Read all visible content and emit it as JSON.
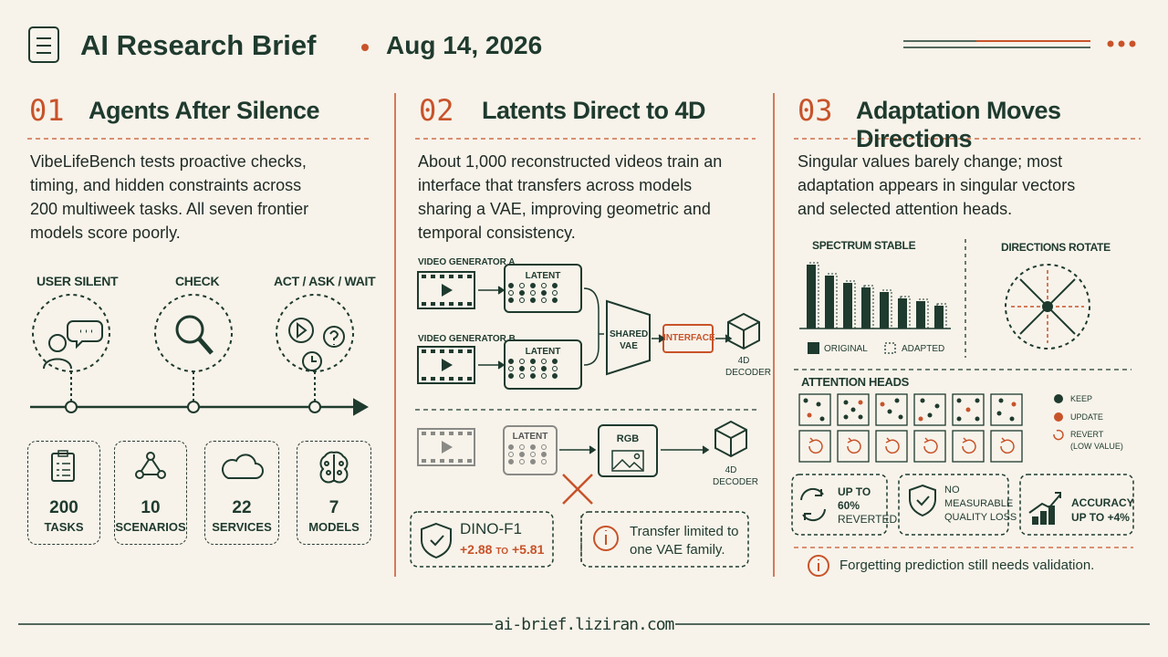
{
  "header": {
    "title": "AI Research Brief",
    "date": "Aug 14, 2026"
  },
  "sections": [
    {
      "number": "01",
      "title": "Agents After Silence",
      "body": "VibeLifeBench tests proactive checks, timing, and hidden constraints across 200 multiweek tasks. All seven frontier models score poorly.",
      "timeline": [
        "USER SILENT",
        "CHECK",
        "ACT / ASK / WAIT"
      ],
      "stats": [
        {
          "value": "200",
          "label": "TASKS"
        },
        {
          "value": "10",
          "label": "SCENARIOS"
        },
        {
          "value": "22",
          "label": "SERVICES"
        },
        {
          "value": "7",
          "label": "MODELS"
        }
      ]
    },
    {
      "number": "02",
      "title": "Latents Direct to 4D",
      "body": "About 1,000 reconstructed videos train an interface that transfers across models sharing a VAE, improving geometric and temporal consistency.",
      "diagram": {
        "generator_a": "VIDEO GENERATOR A",
        "generator_b": "VIDEO GENERATOR B",
        "latent": "LATENT",
        "shared_vae": "SHARED VAE",
        "interface": "INTERFACE",
        "decoder": "4D DECODER",
        "rgb": "RGB"
      },
      "metric": {
        "name": "DINO-F1",
        "low": "+2.88",
        "sep": "to",
        "high": "+5.81"
      },
      "note": "Transfer limited to one VAE family."
    },
    {
      "number": "03",
      "title": "Adaptation Moves Directions",
      "body": "Singular values barely change; most adaptation appears in singular vectors and selected attention heads.",
      "spectrum": {
        "title": "SPECTRUM STABLE",
        "legend": [
          "ORIGINAL",
          "ADAPTED"
        ]
      },
      "directions": "DIRECTIONS ROTATE",
      "heads": {
        "title": "ATTENTION HEADS",
        "legend": [
          "KEEP",
          "UPDATE",
          "REVERT",
          "(LOW VALUE)"
        ]
      },
      "stats": [
        [
          "UP TO",
          "60%",
          "REVERTED"
        ],
        [
          "NO",
          "MEASURABLE",
          "QUALITY LOSS"
        ],
        [
          "ACCURACY",
          "UP TO +4%"
        ]
      ],
      "note": "Forgetting prediction still needs validation."
    }
  ],
  "footer": "ai-brief.liziran.com"
}
